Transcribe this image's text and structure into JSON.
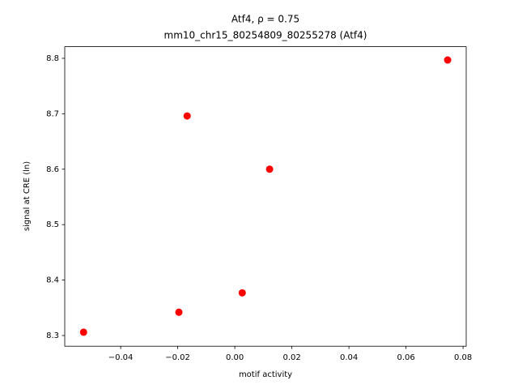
{
  "chart_data": {
    "type": "scatter",
    "title": "Atf4, ρ = 0.75",
    "subtitle": "mm10_chr15_80254809_80255278 (Atf4)",
    "x_label": "motif activity",
    "y_label": "signal at CRE (ln)",
    "x": [
      -0.053,
      -0.0196,
      -0.0167,
      0.0026,
      0.0122,
      0.0746
    ],
    "values": [
      8.306,
      8.342,
      8.696,
      8.377,
      8.6,
      8.797
    ],
    "color": "#ff0000",
    "xlim": [
      -0.0596,
      0.0811
    ],
    "ylim": [
      8.2807,
      8.821
    ],
    "xticks": [
      {
        "value": -0.04,
        "label": "−0.04"
      },
      {
        "value": -0.02,
        "label": "−0.02"
      },
      {
        "value": 0,
        "label": "0.00"
      },
      {
        "value": 0.02,
        "label": "0.02"
      },
      {
        "value": 0.04,
        "label": "0.04"
      },
      {
        "value": 0.06,
        "label": "0.06"
      },
      {
        "value": 0.08,
        "label": "0.08"
      }
    ],
    "yticks": [
      8.3,
      8.4,
      8.5,
      8.6,
      8.7,
      8.8
    ],
    "grid": false
  }
}
